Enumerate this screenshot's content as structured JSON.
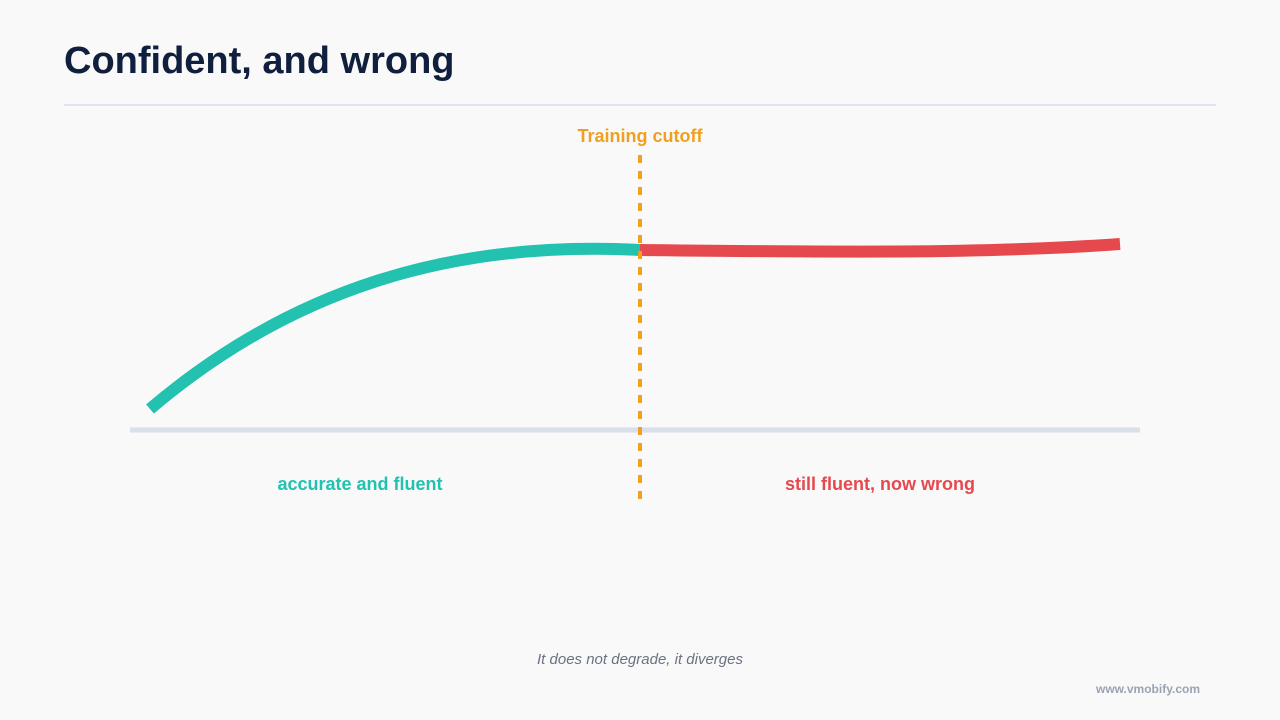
{
  "slide": {
    "title": "Confident, and wrong",
    "caption": "It does not degrade, it diverges",
    "brand": "www.vmobify.com"
  },
  "diagram": {
    "cutoff_label": "Training cutoff",
    "left_label": "accurate and fluent",
    "right_label": "still fluent, now wrong"
  },
  "colors": {
    "title": "#0f1f3d",
    "accurate": "#22c1b0",
    "wrong": "#e5484d",
    "cutoff": "#f0a020",
    "axis": "#d8e0ea"
  }
}
